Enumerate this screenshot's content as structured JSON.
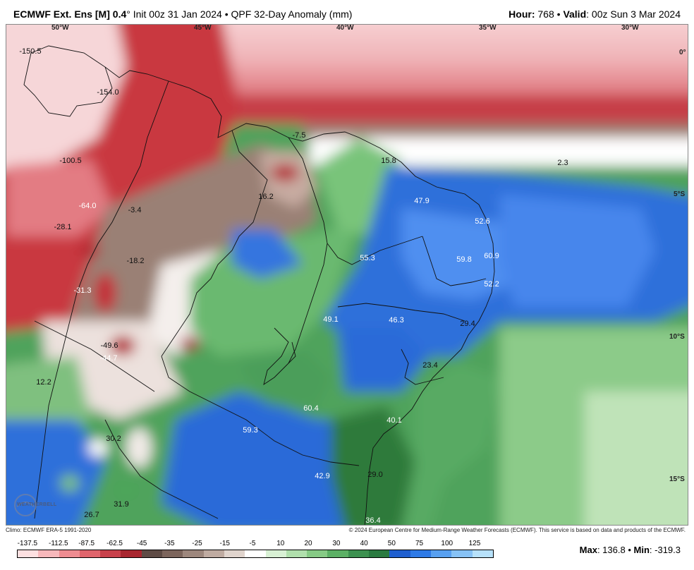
{
  "header": {
    "title_bold": "ECMWF Ext. Ens [M]",
    "title_res": "0.4",
    "title_rest": "° Init 00z 31 Jan 2024 • QPF 32-Day Anomaly (mm)",
    "hour_label": "Hour:",
    "hour_value": "768",
    "valid_label": "Valid",
    "valid_value": ": 00z Sun 3 Mar 2024"
  },
  "map": {
    "region": "Northeast Brazil",
    "palette": {
      "ocean_north": "#f2c9cc",
      "dry_strong": "#b31e2a",
      "dry": "#d75a63",
      "dry_light": "#f0b7bb",
      "neutral_dry": "#9c8478",
      "neutral": "#f6f0ee",
      "wet_light": "#a6d8a4",
      "wet": "#4da55a",
      "wet_dark": "#2f7a3c",
      "wet_blue": "#2b6bd6",
      "wet_blue_light": "#4e8ff0"
    },
    "lon_labels": [
      "50°W",
      "45°W",
      "40°W",
      "35°W",
      "30°W"
    ],
    "lat_labels": [
      "0°",
      "5°S",
      "10°S",
      "15°S"
    ],
    "values": [
      {
        "text": "-150.5",
        "tone": "dark"
      },
      {
        "text": "-154.0",
        "tone": "dark"
      },
      {
        "text": "-100.5",
        "tone": "dark"
      },
      {
        "text": "-64.0",
        "tone": "light"
      },
      {
        "text": "-3.4",
        "tone": "dark"
      },
      {
        "text": "-28.1",
        "tone": "dark"
      },
      {
        "text": "-18.2",
        "tone": "dark"
      },
      {
        "text": "-31.3",
        "tone": "light"
      },
      {
        "text": "-49.6",
        "tone": "dark"
      },
      {
        "text": "-44.7",
        "tone": "light"
      },
      {
        "text": "12.2",
        "tone": "dark"
      },
      {
        "text": "30.2",
        "tone": "dark"
      },
      {
        "text": "31.9",
        "tone": "dark"
      },
      {
        "text": "26.7",
        "tone": "dark"
      },
      {
        "text": "-7.5",
        "tone": "dark"
      },
      {
        "text": "15.8",
        "tone": "dark"
      },
      {
        "text": "2.3",
        "tone": "dark"
      },
      {
        "text": "16.2",
        "tone": "dark"
      },
      {
        "text": "47.9",
        "tone": "light"
      },
      {
        "text": "52.6",
        "tone": "light"
      },
      {
        "text": "55.3",
        "tone": "light"
      },
      {
        "text": "59.8",
        "tone": "light"
      },
      {
        "text": "60.9",
        "tone": "light"
      },
      {
        "text": "52.2",
        "tone": "light"
      },
      {
        "text": "49.1",
        "tone": "light"
      },
      {
        "text": "46.3",
        "tone": "light"
      },
      {
        "text": "29.4",
        "tone": "dark"
      },
      {
        "text": "23.4",
        "tone": "dark"
      },
      {
        "text": "60.4",
        "tone": "light"
      },
      {
        "text": "59.3",
        "tone": "light"
      },
      {
        "text": "40.1",
        "tone": "light"
      },
      {
        "text": "42.9",
        "tone": "light"
      },
      {
        "text": "29.0",
        "tone": "dark"
      },
      {
        "text": "36.4",
        "tone": "light"
      }
    ]
  },
  "logo_text": "WEATHERBELL",
  "footer": {
    "left": "Climo: ECMWF ERA-5 1991-2020",
    "right": "© 2024 European Centre for Medium-Range Weather Forecasts (ECMWF). This service is based on data and products of the ECMWF."
  },
  "colorbar": {
    "labels": [
      "-137.5",
      "-112.5",
      "-87.5",
      "-62.5",
      "-45",
      "-35",
      "-25",
      "-15",
      "-5",
      "10",
      "20",
      "30",
      "40",
      "50",
      "75",
      "100",
      "125"
    ],
    "colors": [
      "#fde0e1",
      "#f7b8bb",
      "#ee8c91",
      "#e0656c",
      "#c8414b",
      "#a8262f",
      "#5e4b45",
      "#7c655c",
      "#9d877d",
      "#bfaba1",
      "#e0d4cd",
      "#ffffff",
      "#d8f0d4",
      "#b0dfac",
      "#86ca85",
      "#5cb065",
      "#3d9150",
      "#2a7a40",
      "#1f5fcf",
      "#2e7ae6",
      "#58a0f0",
      "#87c2f5",
      "#b7e1fa"
    ]
  },
  "stats": {
    "max_label": "Max",
    "max_value": ": 136.8",
    "min_label": "Min",
    "min_value": ": -319.3"
  }
}
